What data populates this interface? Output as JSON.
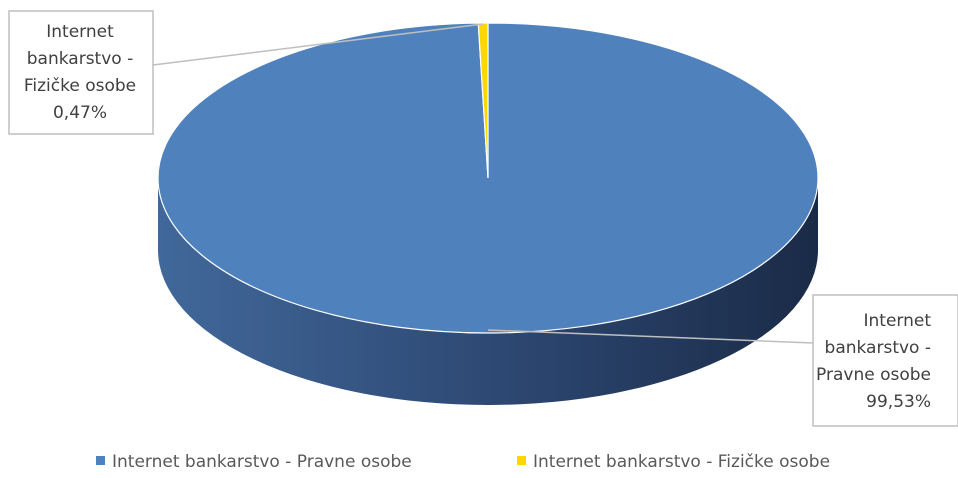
{
  "chart_data": {
    "type": "pie",
    "slices": [
      {
        "label": "Internet bankarstvo - Pravne osobe",
        "value": 99.53,
        "display": "99,53%",
        "color": "#4f81bd"
      },
      {
        "label": "Internet bankarstvo - Fizičke osobe",
        "value": 0.47,
        "display": "0,47%",
        "color": "#ffd700"
      }
    ],
    "data_labels": [
      {
        "lines": [
          "Internet",
          "bankarstvo -",
          "Pravne osobe",
          "99,53%"
        ]
      },
      {
        "lines": [
          "Internet",
          "bankarstvo -",
          "Fizičke osobe",
          "0,47%"
        ]
      }
    ],
    "legend": {
      "placement": "bottom",
      "items": [
        "Internet bankarstvo - Pravne osobe",
        "Internet bankarstvo - Fizičke osobe"
      ]
    },
    "style": "3d-pie"
  }
}
